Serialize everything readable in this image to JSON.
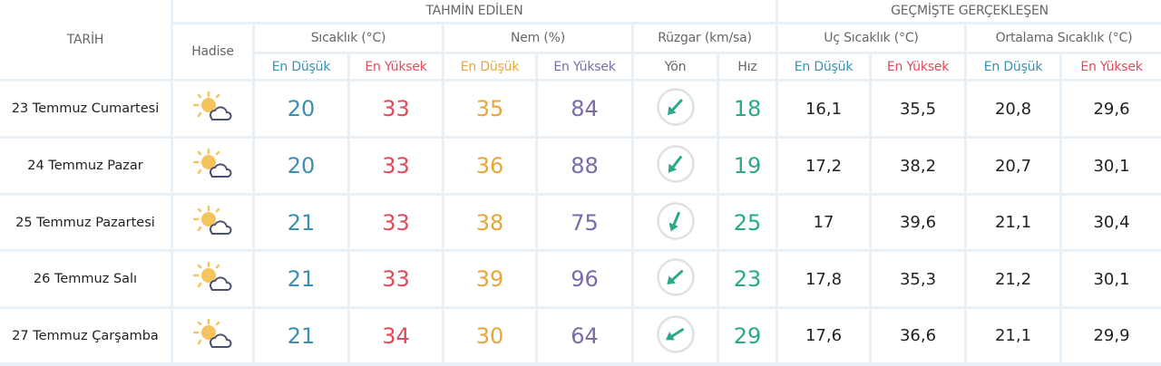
{
  "header": {
    "date": "TARİH",
    "forecast": "TAHMİN EDİLEN",
    "past": "GEÇMİŞTE GERÇEKLEŞEN",
    "event": "Hadise",
    "temp": "Sıcaklık (°C)",
    "humidity": "Nem (%)",
    "wind": "Rüzgar (km/sa)",
    "extreme_temp": "Uç Sıcaklık (°C)",
    "avg_temp": "Ortalama Sıcaklık (°C)",
    "min": "En Düşük",
    "max": "En Yüksek",
    "direction": "Yön",
    "speed": "Hız"
  },
  "colors": {
    "min": "#3a8fb2",
    "max": "#e04a5c",
    "hum_min": "#e6a63c",
    "hum_max": "#7a6aa8",
    "wind": "#2aa98a",
    "grid": "#e9f1f7"
  },
  "rows": [
    {
      "date": "23 Temmuz Cumartesi",
      "icon": "partly-cloudy-icon",
      "tmin": "20",
      "tmax": "33",
      "hmin": "35",
      "hmax": "84",
      "wind_dir_deg": 45,
      "wind": "18",
      "ext_min": "16,1",
      "ext_max": "35,5",
      "avg_min": "20,8",
      "avg_max": "29,6"
    },
    {
      "date": "24 Temmuz Pazar",
      "icon": "partly-cloudy-icon",
      "tmin": "20",
      "tmax": "33",
      "hmin": "36",
      "hmax": "88",
      "wind_dir_deg": 40,
      "wind": "19",
      "ext_min": "17,2",
      "ext_max": "38,2",
      "avg_min": "20,7",
      "avg_max": "30,1"
    },
    {
      "date": "25 Temmuz Pazartesi",
      "icon": "partly-cloudy-icon",
      "tmin": "21",
      "tmax": "33",
      "hmin": "38",
      "hmax": "75",
      "wind_dir_deg": 25,
      "wind": "25",
      "ext_min": "17",
      "ext_max": "39,6",
      "avg_min": "21,1",
      "avg_max": "30,4"
    },
    {
      "date": "26 Temmuz Salı",
      "icon": "partly-cloudy-icon",
      "tmin": "21",
      "tmax": "33",
      "hmin": "39",
      "hmax": "96",
      "wind_dir_deg": 50,
      "wind": "23",
      "ext_min": "17,8",
      "ext_max": "35,3",
      "avg_min": "21,2",
      "avg_max": "30,1"
    },
    {
      "date": "27 Temmuz Çarşamba",
      "icon": "partly-cloudy-icon",
      "tmin": "21",
      "tmax": "34",
      "hmin": "30",
      "hmax": "64",
      "wind_dir_deg": 60,
      "wind": "29",
      "ext_min": "17,6",
      "ext_max": "36,6",
      "avg_min": "21,1",
      "avg_max": "29,9"
    }
  ]
}
